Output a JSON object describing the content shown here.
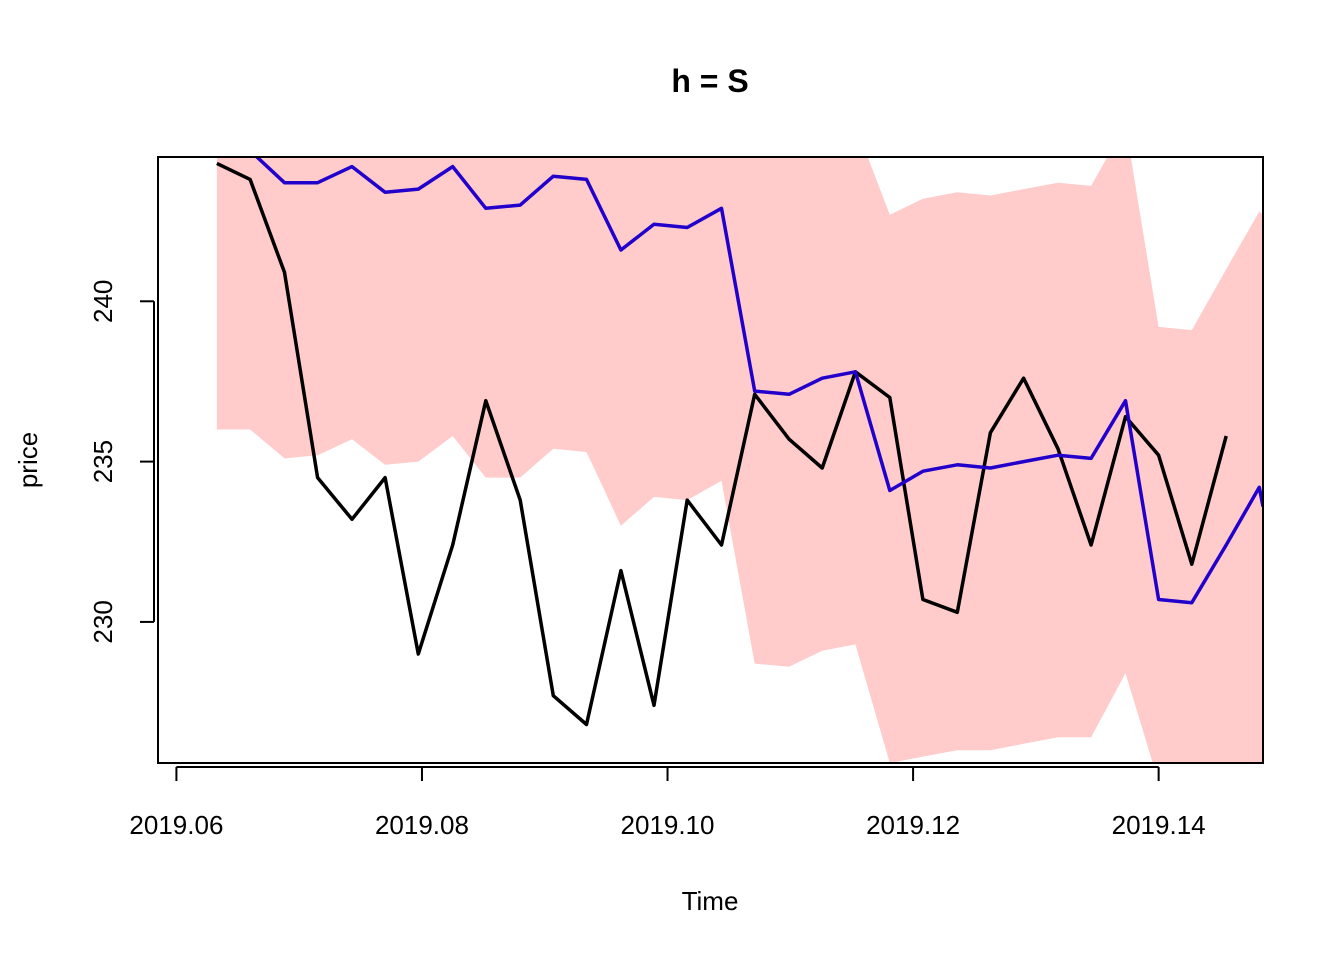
{
  "chart_data": {
    "type": "line",
    "title": "h = S",
    "xlabel": "Time",
    "ylabel": "price",
    "xlim": [
      2019.0585,
      2019.1485
    ],
    "ylim": [
      225.6,
      244.5
    ],
    "x_ticks": [
      "2019.06",
      "2019.08",
      "2019.10",
      "2019.12",
      "2019.14"
    ],
    "x_tick_values": [
      2019.06,
      2019.08,
      2019.1,
      2019.12,
      2019.14
    ],
    "y_ticks": [
      "230",
      "235",
      "240"
    ],
    "y_tick_values": [
      230,
      235,
      240
    ],
    "grid": false,
    "legend": "none",
    "colors": {
      "band": "#FFCBCB",
      "actual": "#000000",
      "fitted": "#2200CC",
      "frame": "#000000"
    },
    "series": [
      {
        "role": "actual",
        "x": [
          2019.0633,
          2019.066,
          2019.0688,
          2019.0715,
          2019.0743,
          2019.077,
          2019.0797,
          2019.0825,
          2019.0852,
          2019.088,
          2019.0907,
          2019.0934,
          2019.0962,
          2019.0989,
          2019.1016,
          2019.1044,
          2019.1071,
          2019.1099,
          2019.1126,
          2019.1153,
          2019.1181,
          2019.1208,
          2019.1236,
          2019.1263,
          2019.129,
          2019.1318,
          2019.1345,
          2019.1373,
          2019.14,
          2019.1427,
          2019.1455
        ],
        "values": [
          244.3,
          243.8,
          240.9,
          234.5,
          233.2,
          234.5,
          229.0,
          232.4,
          236.9,
          233.8,
          227.7,
          226.8,
          231.6,
          227.4,
          233.8,
          232.4,
          237.1,
          235.7,
          234.8,
          237.8,
          237.0,
          230.7,
          230.3,
          235.9,
          237.6,
          235.4,
          232.4,
          236.4,
          235.2,
          231.8,
          235.8
        ]
      },
      {
        "role": "fitted",
        "x": [
          2019.0633,
          2019.066,
          2019.0688,
          2019.0715,
          2019.0743,
          2019.077,
          2019.0797,
          2019.0825,
          2019.0852,
          2019.088,
          2019.0907,
          2019.0934,
          2019.0962,
          2019.0989,
          2019.1016,
          2019.1044,
          2019.1071,
          2019.1099,
          2019.1126,
          2019.1153,
          2019.1181,
          2019.1208,
          2019.1236,
          2019.1263,
          2019.129,
          2019.1318,
          2019.1345,
          2019.1373,
          2019.14,
          2019.1427,
          2019.1455,
          2019.1482,
          2019.1485
        ],
        "values": [
          244.6,
          244.7,
          243.7,
          243.7,
          244.2,
          243.4,
          243.5,
          244.2,
          242.9,
          243.0,
          243.9,
          243.8,
          241.6,
          242.4,
          242.3,
          242.9,
          237.2,
          237.1,
          237.6,
          237.8,
          234.1,
          234.7,
          234.9,
          234.8,
          235.0,
          235.2,
          235.1,
          236.9,
          230.7,
          230.6,
          232.4,
          234.2,
          233.6
        ]
      }
    ],
    "band": {
      "x": [
        2019.0633,
        2019.066,
        2019.0688,
        2019.0715,
        2019.0743,
        2019.077,
        2019.0797,
        2019.0825,
        2019.0852,
        2019.088,
        2019.0907,
        2019.0934,
        2019.0962,
        2019.0989,
        2019.1016,
        2019.1044,
        2019.1071,
        2019.1099,
        2019.1126,
        2019.1153,
        2019.1181,
        2019.1208,
        2019.1236,
        2019.1263,
        2019.129,
        2019.1318,
        2019.1345,
        2019.1373,
        2019.14,
        2019.1427,
        2019.1455,
        2019.1482,
        2019.1485
      ],
      "lower": [
        236.0,
        236.0,
        235.1,
        235.2,
        235.7,
        234.9,
        235.0,
        235.8,
        234.5,
        234.5,
        235.4,
        235.3,
        233.0,
        233.9,
        233.8,
        234.4,
        228.7,
        228.6,
        229.1,
        229.3,
        225.6,
        225.8,
        226.0,
        226.0,
        226.2,
        226.4,
        226.4,
        228.4,
        225.0,
        225.0,
        225.0,
        225.0,
        225.0
      ],
      "upper": [
        245.5,
        245.5,
        245.5,
        245.5,
        245.5,
        245.5,
        245.5,
        245.5,
        245.5,
        245.5,
        245.5,
        245.5,
        245.5,
        245.5,
        245.5,
        245.5,
        245.5,
        245.5,
        245.5,
        245.5,
        242.7,
        243.2,
        243.4,
        243.3,
        243.5,
        243.7,
        243.6,
        245.5,
        239.2,
        239.1,
        241.0,
        242.8,
        242.7
      ]
    }
  }
}
